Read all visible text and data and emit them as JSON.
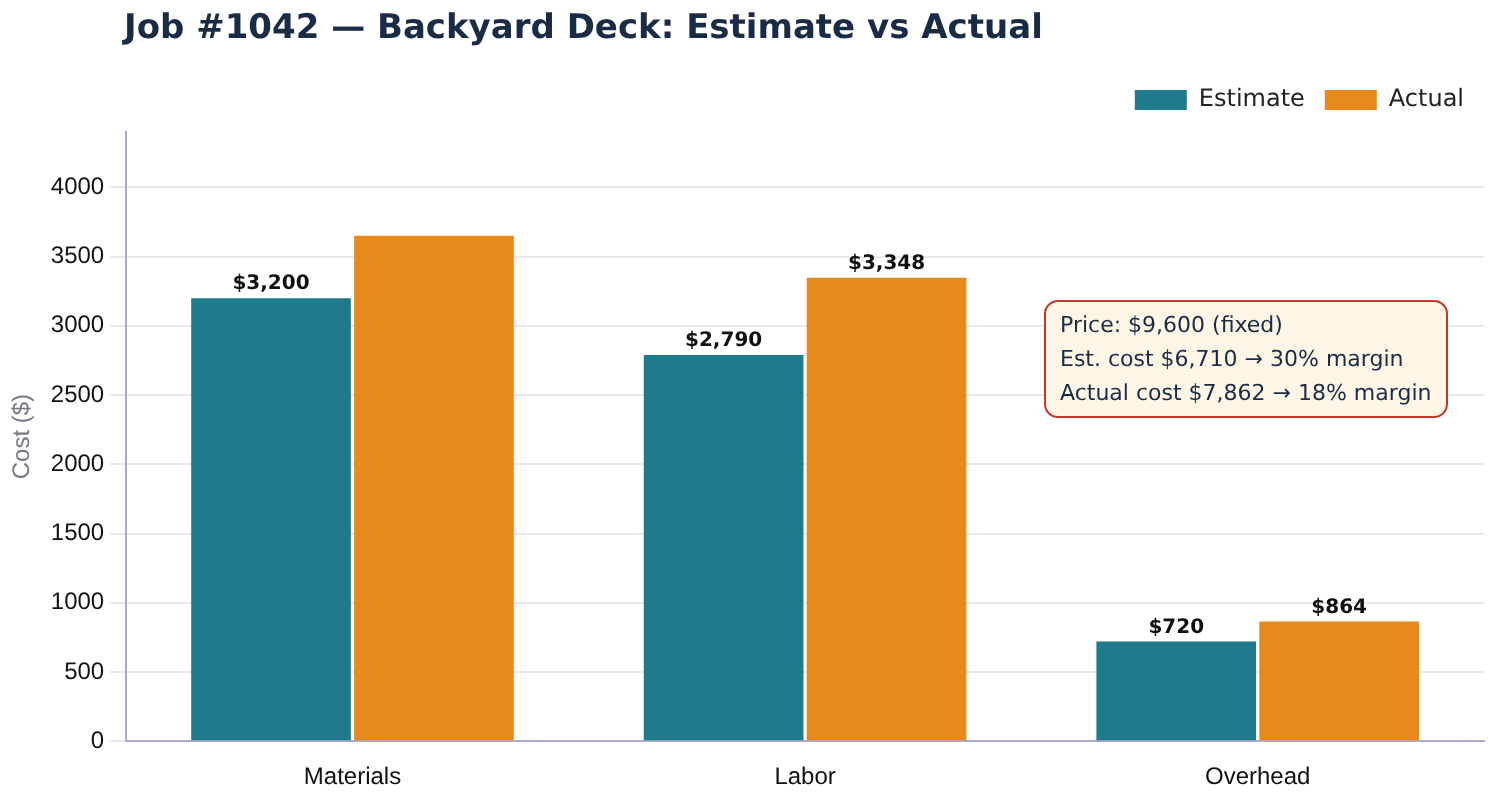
{
  "chart_data": {
    "type": "bar",
    "title": "Job #1042 — Backyard Deck: Estimate vs Actual",
    "ylabel": "Cost ($)",
    "categories": [
      "Materials",
      "Labor",
      "Overhead"
    ],
    "series": [
      {
        "name": "Estimate",
        "color": "#1f7a8c",
        "values": [
          3200,
          2790,
          720
        ],
        "value_labels": [
          "$3,200",
          "$2,790",
          "$720"
        ]
      },
      {
        "name": "Actual",
        "color": "#e8891c",
        "values": [
          3650,
          3348,
          864
        ],
        "value_labels": [
          null,
          "$3,348",
          "$864"
        ]
      }
    ],
    "ylim": [
      0,
      4400
    ],
    "yticks": [
      0,
      500,
      1000,
      1500,
      2000,
      2500,
      3000,
      3500,
      4000
    ],
    "grid": "y",
    "legend": "top right",
    "annotations": [
      "Price: $9,600 (fixed)",
      "Est. cost $6,710  →  30% margin",
      "Actual cost $7,862  →  18% margin"
    ]
  }
}
